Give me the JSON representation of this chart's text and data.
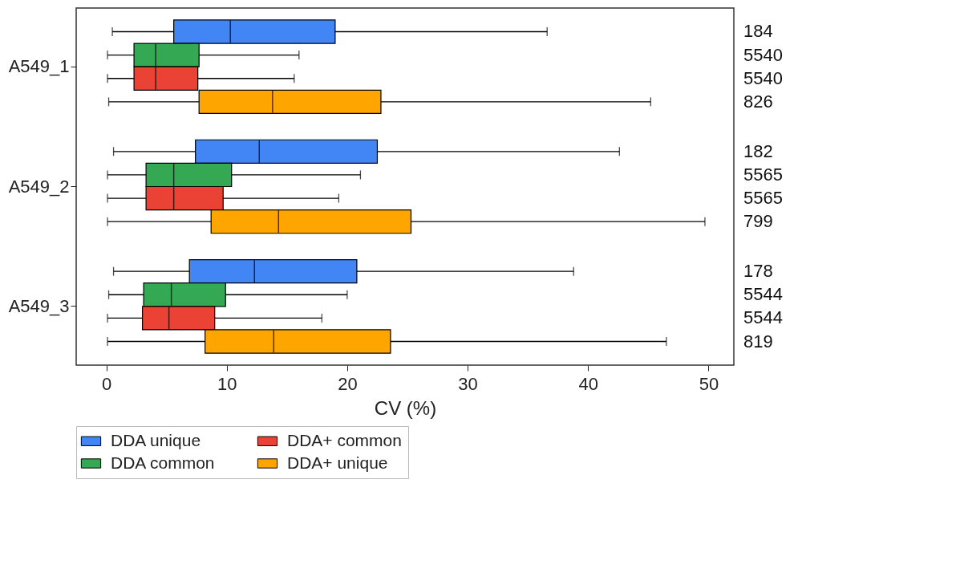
{
  "chart_data": {
    "type": "box",
    "orientation": "horizontal",
    "xlabel": "CV (%)",
    "categories": [
      "A549_1",
      "A549_2",
      "A549_3"
    ],
    "xlim": [
      -2.5,
      52.1
    ],
    "xticks": [
      0,
      10,
      20,
      30,
      40,
      50
    ],
    "grid": false,
    "legend": "bottom",
    "series": [
      {
        "name": "DDA unique",
        "color": "#4285f4",
        "boxes": [
          {
            "low": 0.5,
            "q1": 5.6,
            "median": 10.3,
            "q3": 19.0,
            "high": 36.6
          },
          {
            "low": 0.6,
            "q1": 7.4,
            "median": 12.7,
            "q3": 22.5,
            "high": 42.6
          },
          {
            "low": 0.6,
            "q1": 6.9,
            "median": 12.3,
            "q3": 20.8,
            "high": 38.8
          }
        ]
      },
      {
        "name": "DDA common",
        "color": "#34a853",
        "boxes": [
          {
            "low": 0.1,
            "q1": 2.3,
            "median": 4.1,
            "q3": 7.7,
            "high": 16.0
          },
          {
            "low": 0.1,
            "q1": 3.3,
            "median": 5.6,
            "q3": 10.4,
            "high": 21.1
          },
          {
            "low": 0.2,
            "q1": 3.1,
            "median": 5.4,
            "q3": 9.9,
            "high": 20.0
          }
        ]
      },
      {
        "name": "DDA+ common",
        "color": "#ea4335",
        "boxes": [
          {
            "low": 0.1,
            "q1": 2.3,
            "median": 4.1,
            "q3": 7.6,
            "high": 15.6
          },
          {
            "low": 0.1,
            "q1": 3.3,
            "median": 5.6,
            "q3": 9.7,
            "high": 19.3
          },
          {
            "low": 0.1,
            "q1": 3.0,
            "median": 5.2,
            "q3": 9.0,
            "high": 17.9
          }
        ]
      },
      {
        "name": "DDA+ unique",
        "color": "#ffa500",
        "boxes": [
          {
            "low": 0.2,
            "q1": 7.7,
            "median": 13.8,
            "q3": 22.8,
            "high": 45.2
          },
          {
            "low": 0.1,
            "q1": 8.7,
            "median": 14.3,
            "q3": 25.3,
            "high": 49.7
          },
          {
            "low": 0.1,
            "q1": 8.2,
            "median": 13.9,
            "q3": 23.6,
            "high": 46.5
          }
        ]
      }
    ],
    "annotations": [
      "184",
      "5540",
      "5540",
      "826",
      "182",
      "5565",
      "5565",
      "799",
      "178",
      "5544",
      "5544",
      "819"
    ]
  }
}
